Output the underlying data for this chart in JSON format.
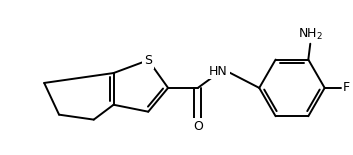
{
  "bg_color": "#ffffff",
  "line_color": "#000000",
  "line_width": 1.4,
  "font_size": 8.5,
  "figsize": [
    3.53,
    1.55
  ],
  "dpi": 100,
  "xlim": [
    0,
    353
  ],
  "ylim": [
    0,
    155
  ]
}
